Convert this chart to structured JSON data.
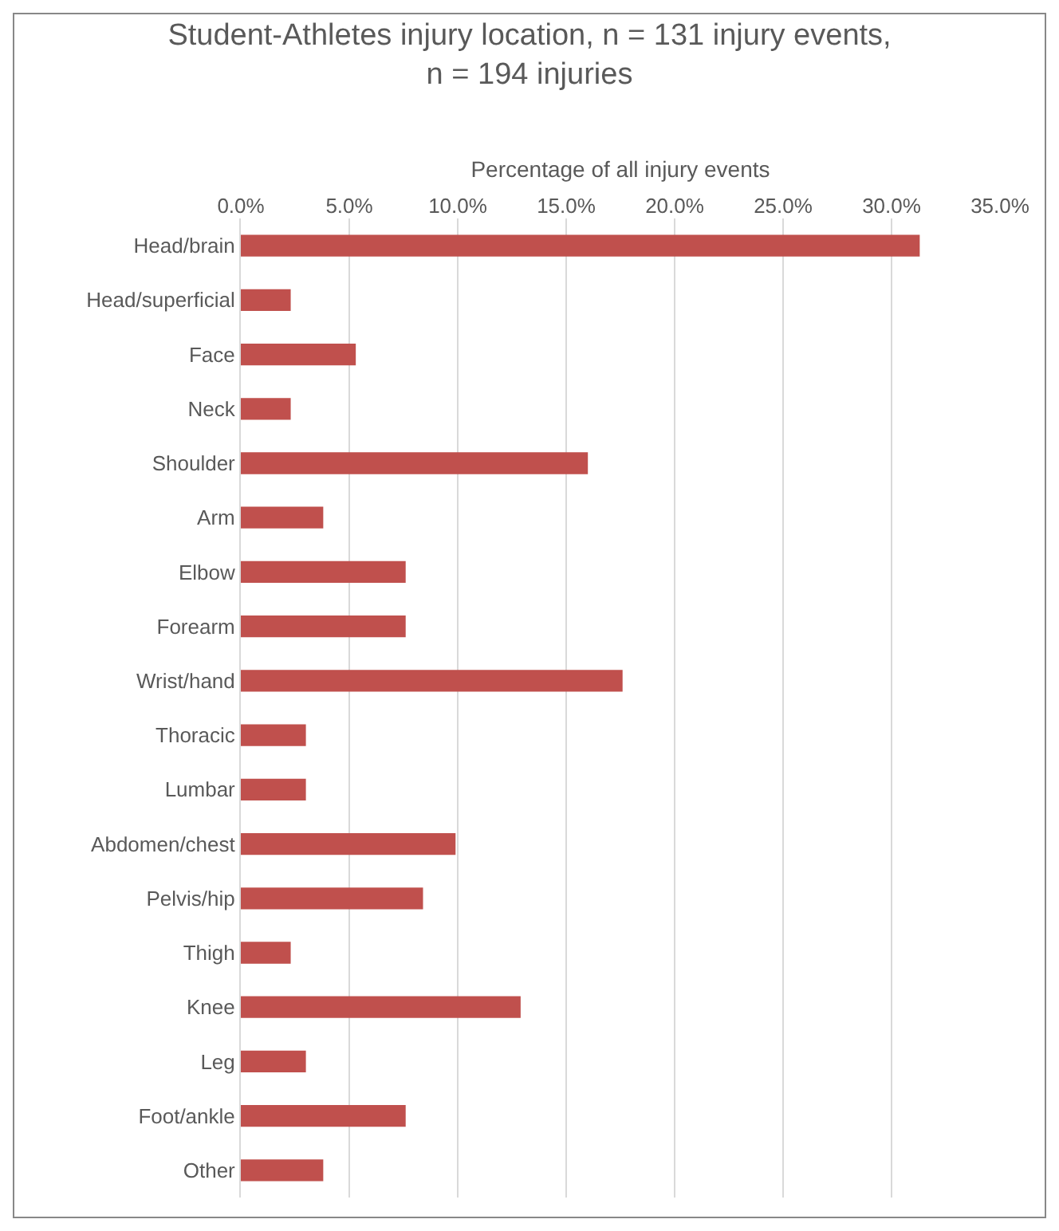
{
  "chart_data": {
    "type": "bar",
    "orientation": "horizontal",
    "title": "Student-Athletes injury location, n = 131 injury events, n = 194 injuries",
    "xlabel": "Percentage of all injury events",
    "categories": [
      "Head/brain",
      "Head/superficial",
      "Face",
      "Neck",
      "Shoulder",
      "Arm",
      "Elbow",
      "Forearm",
      "Wrist/hand",
      "Thoracic",
      "Lumbar",
      "Abdomen/chest",
      "Pelvis/hip",
      "Thigh",
      "Knee",
      "Leg",
      "Foot/ankle",
      "Other"
    ],
    "values": [
      31.3,
      2.3,
      5.3,
      2.3,
      16.0,
      3.8,
      7.6,
      7.6,
      17.6,
      3.0,
      3.0,
      9.9,
      8.4,
      2.3,
      12.9,
      3.0,
      7.6,
      3.8
    ],
    "color": "#c0504d",
    "xlim": [
      0,
      35
    ],
    "xticks": [
      {
        "value": 0,
        "label": "0.0%"
      },
      {
        "value": 5,
        "label": "5.0%"
      },
      {
        "value": 10,
        "label": "10.0%"
      },
      {
        "value": 15,
        "label": "15.0%"
      },
      {
        "value": 20,
        "label": "20.0%"
      },
      {
        "value": 25,
        "label": "25.0%"
      },
      {
        "value": 30,
        "label": "30.0%"
      },
      {
        "value": 35,
        "label": "35.0%"
      }
    ],
    "grid": "x",
    "legend": false
  }
}
